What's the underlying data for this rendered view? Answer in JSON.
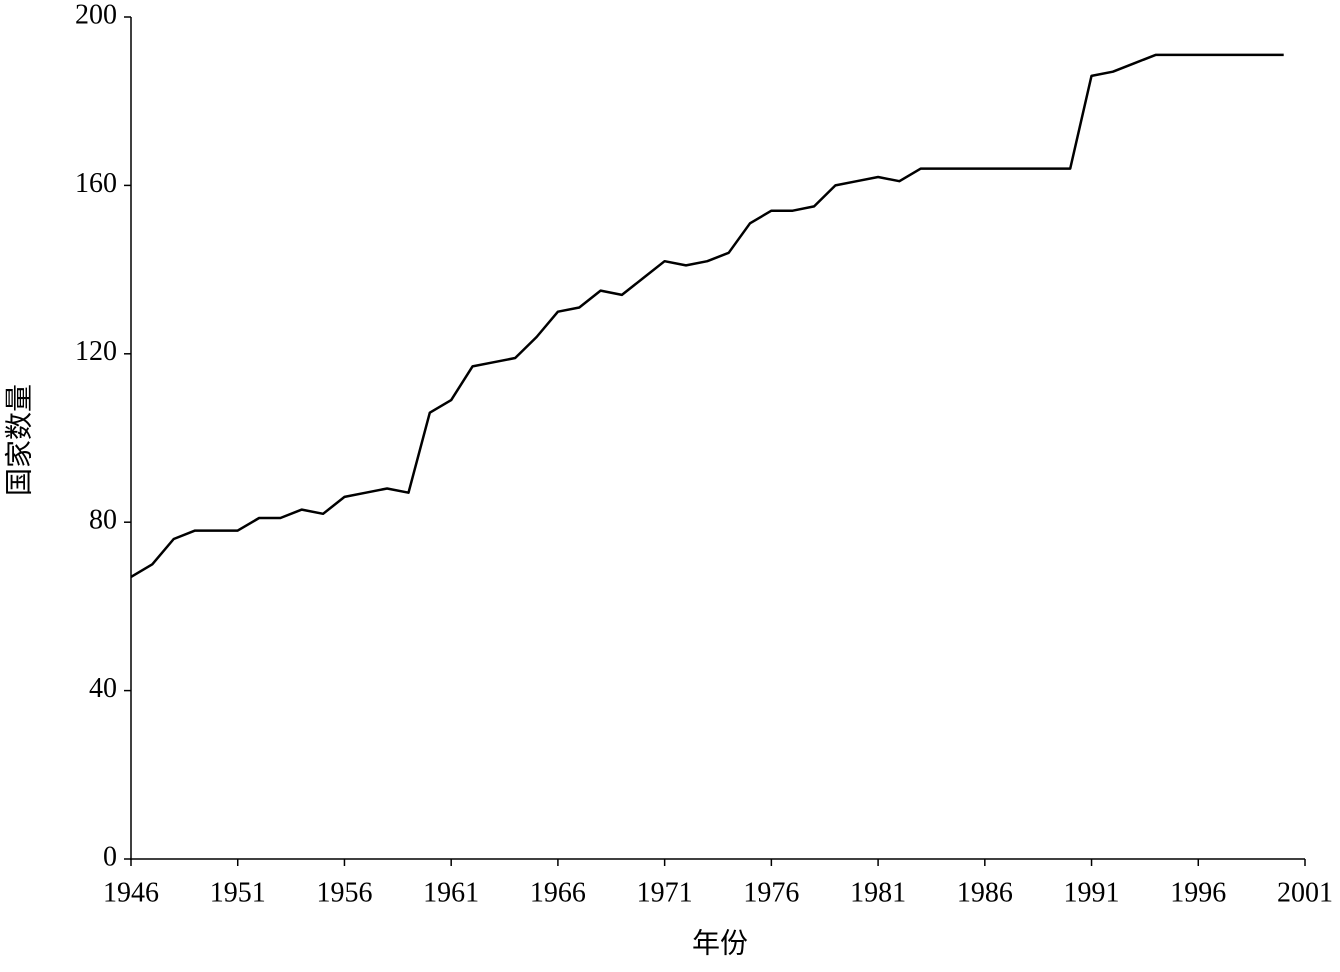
{
  "chart_data": {
    "type": "line",
    "x_label": "年份",
    "y_label": "国家数量",
    "x": [
      1946,
      1947,
      1948,
      1949,
      1950,
      1951,
      1952,
      1953,
      1954,
      1955,
      1956,
      1957,
      1958,
      1959,
      1960,
      1961,
      1962,
      1963,
      1964,
      1965,
      1966,
      1967,
      1968,
      1969,
      1970,
      1971,
      1972,
      1973,
      1974,
      1975,
      1976,
      1977,
      1978,
      1979,
      1980,
      1981,
      1982,
      1983,
      1984,
      1985,
      1986,
      1987,
      1988,
      1989,
      1990,
      1991,
      1992,
      1993,
      1994,
      1995,
      1996,
      1997,
      1998,
      1999,
      2000
    ],
    "series": [
      {
        "color": "#000000",
        "values": [
          67,
          70,
          76,
          78,
          78,
          78,
          81,
          81,
          83,
          82,
          86,
          87,
          88,
          87,
          106,
          109,
          117,
          118,
          119,
          124,
          130,
          131,
          135,
          134,
          138,
          142,
          141,
          142,
          144,
          151,
          154,
          154,
          155,
          160,
          161,
          162,
          161,
          164,
          164,
          164,
          164,
          164,
          164,
          164,
          164,
          186,
          187,
          189,
          191,
          191,
          191,
          191,
          191,
          191,
          191
        ]
      }
    ],
    "xlim": [
      1946,
      2001
    ],
    "xticks": [
      1946,
      1951,
      1956,
      1961,
      1966,
      1971,
      1976,
      1981,
      1986,
      1991,
      1996,
      2001
    ],
    "ylim": [
      0,
      200
    ],
    "yticks": [
      0,
      40,
      80,
      120,
      160,
      200
    ],
    "grid": false
  }
}
